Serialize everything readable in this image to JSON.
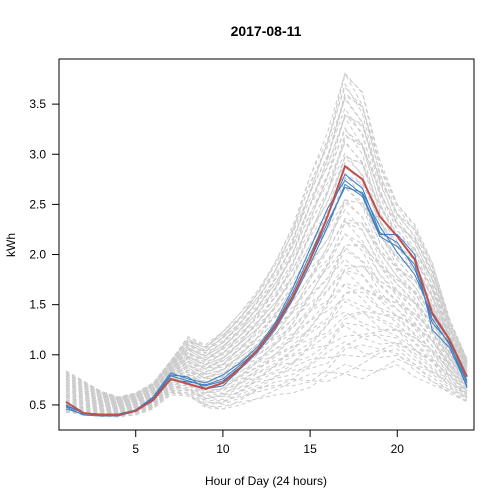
{
  "chart_data": {
    "type": "line",
    "title": "2017-08-11",
    "xlabel": "Hour of Day (24 hours)",
    "ylabel": "kWh",
    "xlim": [
      0.6,
      24.4
    ],
    "ylim": [
      0.25,
      3.95
    ],
    "xticks": [
      5,
      10,
      15,
      20
    ],
    "yticks": [
      0.5,
      1.0,
      1.5,
      2.0,
      2.5,
      3.0,
      3.5
    ],
    "ytick_labels": [
      "0.5",
      "1.0",
      "1.5",
      "2.0",
      "2.5",
      "3.0",
      "3.5"
    ],
    "grid": false,
    "background_color": "#cccccc",
    "highlight_color": "#c0504d",
    "neighbor_color": "#3f7fbf",
    "x": [
      1,
      2,
      3,
      4,
      5,
      6,
      7,
      8,
      9,
      10,
      11,
      12,
      13,
      14,
      15,
      16,
      17,
      18,
      19,
      20,
      21,
      22,
      23,
      24
    ],
    "background_series_envelope": {
      "upper": [
        0.84,
        0.74,
        0.64,
        0.58,
        0.62,
        0.72,
        0.94,
        1.18,
        1.1,
        1.24,
        1.42,
        1.64,
        1.92,
        2.28,
        2.78,
        3.22,
        3.84,
        3.62,
        2.94,
        2.5,
        2.3,
        1.92,
        1.36,
        0.96
      ],
      "lower": [
        0.42,
        0.39,
        0.38,
        0.38,
        0.4,
        0.46,
        0.6,
        0.58,
        0.46,
        0.44,
        0.5,
        0.56,
        0.6,
        0.62,
        0.64,
        0.68,
        0.74,
        0.76,
        0.84,
        0.9,
        0.78,
        0.68,
        0.6,
        0.52
      ]
    },
    "highlight_series": {
      "values": [
        0.53,
        0.42,
        0.4,
        0.4,
        0.44,
        0.55,
        0.76,
        0.71,
        0.66,
        0.72,
        0.87,
        1.05,
        1.28,
        1.58,
        1.95,
        2.38,
        2.88,
        2.75,
        2.38,
        2.18,
        1.95,
        1.42,
        1.15,
        0.78
      ]
    },
    "neighbor_series": [
      {
        "values": [
          0.46,
          0.41,
          0.4,
          0.4,
          0.44,
          0.56,
          0.79,
          0.74,
          0.69,
          0.74,
          0.88,
          1.06,
          1.3,
          1.62,
          2.0,
          2.38,
          2.8,
          2.66,
          2.22,
          2.12,
          1.86,
          1.36,
          1.1,
          0.72
        ]
      },
      {
        "values": [
          0.49,
          0.42,
          0.41,
          0.41,
          0.45,
          0.58,
          0.82,
          0.76,
          0.72,
          0.8,
          0.92,
          1.08,
          1.32,
          1.66,
          2.06,
          2.46,
          2.74,
          2.6,
          2.2,
          2.2,
          2.0,
          1.25,
          1.07,
          0.69
        ]
      },
      {
        "values": [
          0.48,
          0.4,
          0.39,
          0.39,
          0.44,
          0.54,
          0.75,
          0.73,
          0.7,
          0.76,
          0.9,
          1.05,
          1.27,
          1.57,
          1.94,
          2.32,
          2.67,
          2.62,
          2.28,
          2.02,
          1.8,
          1.4,
          1.14,
          0.74
        ]
      },
      {
        "values": [
          0.5,
          0.42,
          0.4,
          0.4,
          0.45,
          0.57,
          0.8,
          0.78,
          0.66,
          0.69,
          0.86,
          1.03,
          1.25,
          1.55,
          1.9,
          2.28,
          2.7,
          2.58,
          2.18,
          2.08,
          1.9,
          1.32,
          1.12,
          0.67
        ]
      }
    ]
  }
}
